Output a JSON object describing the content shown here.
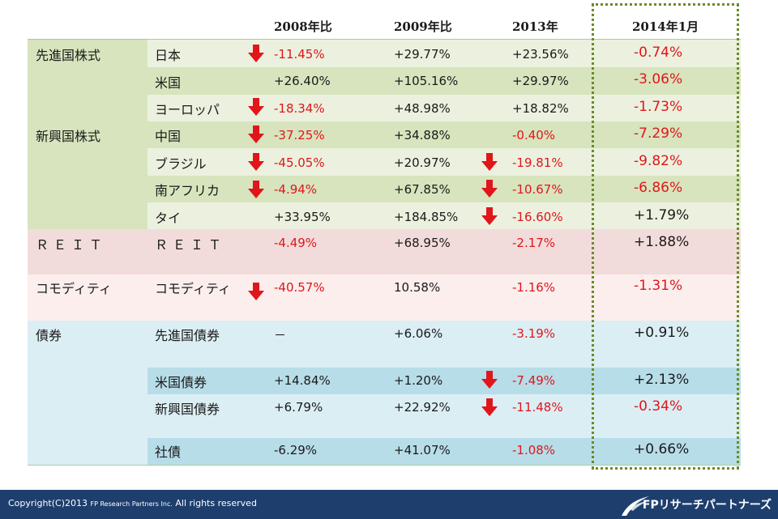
{
  "headers": [
    "2008年比",
    "2009年比",
    "2013年",
    "2014年1月"
  ],
  "rows": [
    {
      "group": "先進国株式",
      "name": "日本",
      "v2008": "-11.45%",
      "v2009": "+29.77%",
      "v2013": "+23.56%",
      "v2014": "-0.74%"
    },
    {
      "group": "",
      "name": "米国",
      "v2008": "+26.40%",
      "v2009": "+105.16%",
      "v2013": "+29.97%",
      "v2014": "-3.06%"
    },
    {
      "group": "",
      "name": "ヨーロッパ",
      "v2008": "-18.34%",
      "v2009": "+48.98%",
      "v2013": "+18.82%",
      "v2014": "-1.73%"
    },
    {
      "group": "新興国株式",
      "name": "中国",
      "v2008": "-37.25%",
      "v2009": "+34.88%",
      "v2013": "-0.40%",
      "v2014": "-7.29%"
    },
    {
      "group": "",
      "name": "ブラジル",
      "v2008": "-45.05%",
      "v2009": "+20.97%",
      "v2013": "-19.81%",
      "v2014": "-9.82%"
    },
    {
      "group": "",
      "name": "南アフリカ",
      "v2008": "-4.94%",
      "v2009": "+67.85%",
      "v2013": "-10.67%",
      "v2014": "-6.86%"
    },
    {
      "group": "",
      "name": "タイ",
      "v2008": "+33.95%",
      "v2009": "+184.85%",
      "v2013": "-16.60%",
      "v2014": "+1.79%"
    },
    {
      "group": "ＲＥＩＴ",
      "name": "ＲＥＩＴ",
      "v2008": "-4.49%",
      "v2009": "+68.95%",
      "v2013": "-2.17%",
      "v2014": "+1.88%"
    },
    {
      "group": "コモディティ",
      "name": "コモディティ",
      "v2008": "-40.57%",
      "v2009": "10.58%",
      "v2013": "-1.16%",
      "v2014": "-1.31%"
    },
    {
      "group": "債券",
      "name": "先進国債券",
      "v2008": "－",
      "v2009": "+6.06%",
      "v2013": "-3.19%",
      "v2014": "+0.91%"
    },
    {
      "group": "",
      "name": "米国債券",
      "v2008": "+14.84%",
      "v2009": "+1.20%",
      "v2013": "-7.49%",
      "v2014": "+2.13%"
    },
    {
      "group": "",
      "name": "新興国債券",
      "v2008": "+6.79%",
      "v2009": "+22.92%",
      "v2013": "-11.48%",
      "v2014": "-0.34%"
    },
    {
      "group": "",
      "name": "社債",
      "v2008": "-6.29%",
      "v2009": "+41.07%",
      "v2013": "-1.08%",
      "v2014": "+0.66%"
    }
  ],
  "footer": {
    "copyright_main": "Copyright(C)2013",
    "copyright_company": "FP Research Partners Inc.",
    "copyright_rights": "All rights reserved",
    "brand": "FPリサーチパートナーズ"
  },
  "colors": {
    "negative": "#e0161b",
    "stock_light": "#ebf1de",
    "stock_dark": "#d7e4bd",
    "reit": "#f2dcdb",
    "commodity": "#fbeeed",
    "bond_light": "#dbeef4",
    "bond_dark": "#b7dde8",
    "footer": "#1e3f6e"
  }
}
